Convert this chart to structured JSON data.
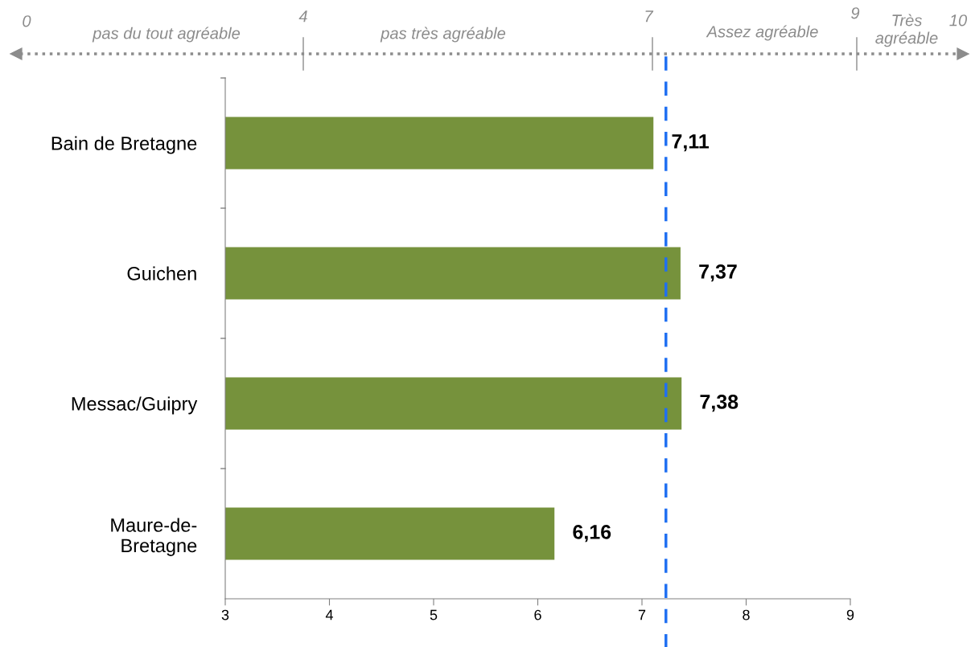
{
  "chart_data": {
    "type": "bar",
    "orientation": "horizontal",
    "categories": [
      "Bain de Bretagne",
      "Guichen",
      "Messac/Guipry",
      "Maure-de-\nBretagne"
    ],
    "values": [
      7.11,
      7.37,
      7.38,
      6.16
    ],
    "color": "#76923c",
    "xlim": [
      3,
      9
    ],
    "xticks": [
      3,
      4,
      5,
      6,
      7,
      8,
      9
    ],
    "grid": false,
    "value_labels": [
      "7,11",
      "7,37",
      "7,38",
      "6,16"
    ],
    "ref_lines": [
      {
        "axis": "x",
        "value": 7.23,
        "color": "#1f6ff2",
        "line_style": "dashed"
      }
    ],
    "annotations": [
      "0",
      "pas du tout agréable",
      "4",
      "pas très agréable",
      "7",
      "Assez agréable",
      "9",
      "Très\nagréable",
      "10"
    ]
  }
}
